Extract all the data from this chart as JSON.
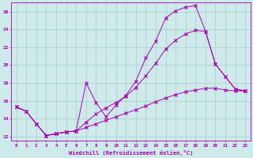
{
  "xlabel": "Windchill (Refroidissement éolien,°C)",
  "background_color": "#ceeaea",
  "grid_color": "#a8cccc",
  "line_color": "#aa00aa",
  "xlim": [
    -0.5,
    23.5
  ],
  "ylim": [
    11.5,
    27.0
  ],
  "yticks": [
    12,
    14,
    16,
    18,
    20,
    22,
    24,
    26
  ],
  "xticks": [
    0,
    1,
    2,
    3,
    4,
    5,
    6,
    7,
    8,
    9,
    10,
    11,
    12,
    13,
    14,
    15,
    16,
    17,
    18,
    19,
    20,
    21,
    22,
    23
  ],
  "line1_x": [
    0,
    1,
    2,
    3,
    4,
    5,
    6,
    7,
    8,
    9,
    10,
    11,
    12,
    13,
    14,
    15,
    16,
    17,
    18,
    19,
    20,
    21,
    22,
    23
  ],
  "line1_y": [
    15.3,
    14.8,
    13.4,
    12.1,
    12.3,
    12.5,
    12.6,
    18.0,
    15.8,
    14.2,
    15.5,
    16.6,
    18.2,
    20.8,
    22.7,
    25.3,
    26.1,
    26.5,
    26.7,
    23.8,
    20.1,
    18.7,
    17.3,
    17.1
  ],
  "line2_x": [
    0,
    1,
    2,
    3,
    4,
    5,
    6,
    7,
    8,
    9,
    10,
    11,
    12,
    13,
    14,
    15,
    16,
    17,
    18,
    19,
    20,
    21,
    22,
    23
  ],
  "line2_y": [
    15.3,
    14.8,
    13.4,
    12.1,
    12.3,
    12.5,
    12.6,
    13.6,
    14.5,
    15.2,
    15.8,
    16.5,
    17.5,
    18.8,
    20.2,
    21.8,
    22.8,
    23.5,
    23.9,
    23.8,
    20.1,
    18.7,
    17.3,
    17.1
  ],
  "line3_x": [
    0,
    1,
    2,
    3,
    4,
    5,
    6,
    7,
    8,
    9,
    10,
    11,
    12,
    13,
    14,
    15,
    16,
    17,
    18,
    19,
    20,
    21,
    22,
    23
  ],
  "line3_y": [
    15.3,
    14.8,
    13.4,
    12.1,
    12.3,
    12.5,
    12.6,
    13.0,
    13.4,
    13.8,
    14.2,
    14.6,
    15.0,
    15.4,
    15.9,
    16.3,
    16.7,
    17.0,
    17.2,
    17.4,
    17.4,
    17.2,
    17.1,
    17.1
  ]
}
